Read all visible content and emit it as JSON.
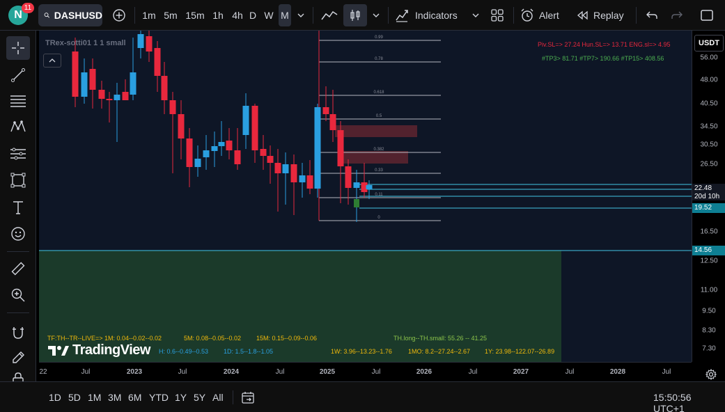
{
  "header": {
    "avatar_letter": "N",
    "notification_count": "11",
    "symbol": "DASHUSD",
    "intervals": [
      "1m",
      "5m",
      "15m",
      "1h",
      "4h",
      "D",
      "W",
      "M"
    ],
    "active_interval": "M",
    "indicators_label": "Indicators",
    "alert_label": "Alert",
    "replay_label": "Replay"
  },
  "legend": {
    "indicator_name": "TRex-sotti01 1 1 small"
  },
  "chart_overlay": {
    "pivot_line": "Piv.SL=> 27.24  Hun.SL=> 13.71  ENG.sl=> 4.95",
    "tp_line": "#TP3> 81.71  #TP7> 190.66  #TP15> 408.56",
    "fib_labels": [
      "0.99",
      "0.78",
      "0.618",
      "0.5",
      "0.382",
      "0.33",
      "0.11",
      "0"
    ],
    "tf_line1_a": "TF:TH--TR--LIVE=>  1M: 0.04--0.02--0.02",
    "tf_line1_b": "5M: 0.08--0.05--0.02",
    "tf_line1_c": "15M: 0.15--0.09--0.06",
    "tf_line1_d": "TH.long--TH.small: 55.26 -- 41.25",
    "tf_line2_a": "H: 0.6--0.49--0.53",
    "tf_line2_b": "1D: 1.5--1.8--1.05",
    "tf_line2_c": "1W: 3.96--13.23--1.76",
    "tf_line2_d": "1MO: 8.2--27.24--2.67",
    "tf_line2_e": "1Y: 23.98--122.07--26.89",
    "watermark": "TradingView"
  },
  "price_axis": {
    "currency": "USDT",
    "ticks": [
      "56.00",
      "48.00",
      "40.50",
      "34.50",
      "30.50",
      "26.50",
      "16.50",
      "12.50",
      "11.00",
      "9.50",
      "8.30",
      "7.30"
    ],
    "last_price": "22.48",
    "countdown": "20d 10h",
    "level_1": "19.52",
    "level_2": "14.56"
  },
  "time_axis": {
    "ticks": [
      "22",
      "Jul",
      "2023",
      "Jul",
      "2024",
      "Jul",
      "2025",
      "Jul",
      "2026",
      "Jul",
      "2027",
      "Jul",
      "2028",
      "Jul"
    ]
  },
  "bottom_bar": {
    "ranges": [
      "1D",
      "5D",
      "1M",
      "3M",
      "6M",
      "YTD",
      "1Y",
      "5Y",
      "All"
    ],
    "clock": "15:50:56 UTC+1"
  },
  "colors": {
    "up": "#2a9fe0",
    "down": "#e8283d",
    "background": "#0e1626",
    "green_zone": "#1b3a2a",
    "cyan_line": "#42c7e6"
  }
}
